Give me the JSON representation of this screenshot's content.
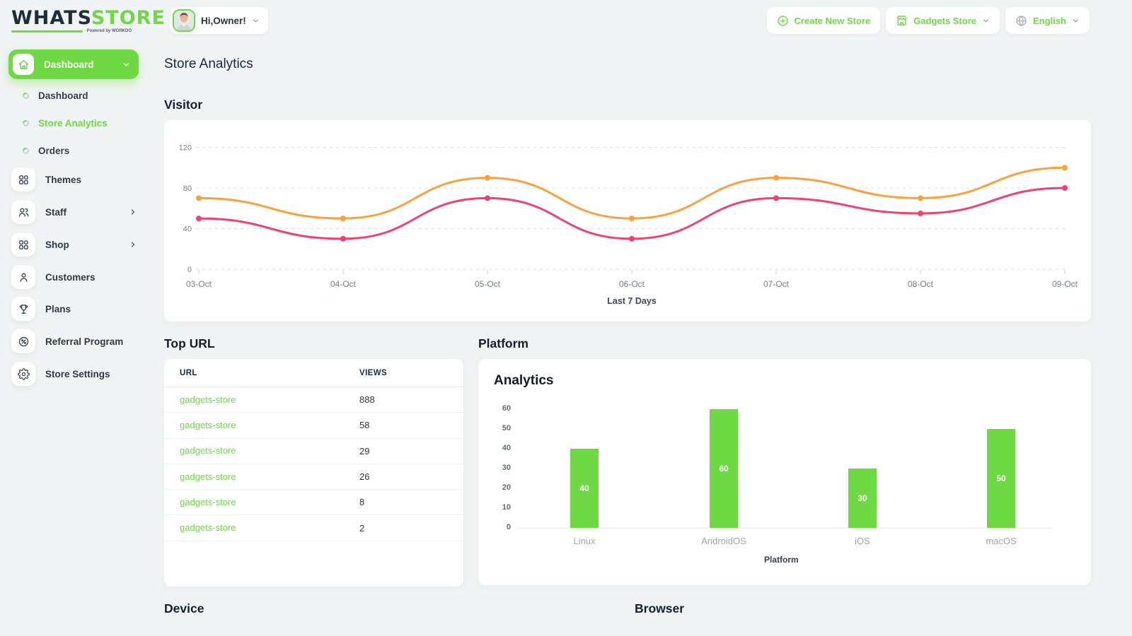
{
  "brand": {
    "name_primary": "WHATS",
    "name_secondary": "STORE",
    "tagline": "Powered by WORKDO"
  },
  "topbar": {
    "greeting": "Hi,Owner!",
    "create_store_label": "Create New Store",
    "store_name": "Gadgets Store",
    "language_label": "English"
  },
  "sidebar": {
    "dashboard_label": "Dashboard",
    "sub_items": [
      {
        "label": "Dashboard",
        "active": false
      },
      {
        "label": "Store Analytics",
        "active": true
      },
      {
        "label": "Orders",
        "active": false
      }
    ],
    "items": [
      {
        "label": "Themes",
        "icon": "grid-icon"
      },
      {
        "label": "Staff",
        "icon": "users-icon"
      },
      {
        "label": "Shop",
        "icon": "grid-icon"
      },
      {
        "label": "Customers",
        "icon": "user-icon"
      },
      {
        "label": "Plans",
        "icon": "trophy-icon"
      },
      {
        "label": "Referral Program",
        "icon": "percent-badge-icon"
      },
      {
        "label": "Store Settings",
        "icon": "gear-icon"
      }
    ]
  },
  "page": {
    "title": "Store Analytics"
  },
  "section_titles": {
    "visitor": "Visitor",
    "top_url": "Top URL",
    "platform": "Platform",
    "device": "Device",
    "browser": "Browser"
  },
  "top_url_table": {
    "headers": [
      "URL",
      "VIEWS"
    ],
    "rows": [
      {
        "url": "gadgets-store",
        "views": "888"
      },
      {
        "url": "gadgets-store",
        "views": "58"
      },
      {
        "url": "gadgets-store",
        "views": "29"
      },
      {
        "url": "gadgets-store",
        "views": "26"
      },
      {
        "url": "gadgets-store",
        "views": "8"
      },
      {
        "url": "gadgets-store",
        "views": "2"
      }
    ]
  },
  "chart_data": [
    {
      "id": "visitor_line",
      "type": "line",
      "x": [
        "03-Oct",
        "04-Oct",
        "05-Oct",
        "06-Oct",
        "07-Oct",
        "08-Oct",
        "09-Oct"
      ],
      "series": [
        {
          "name": "visitors-orange",
          "color": "#f9a13c",
          "values": [
            70,
            50,
            90,
            50,
            90,
            70,
            100
          ]
        },
        {
          "name": "visitors-pink",
          "color": "#f2416f",
          "values": [
            50,
            30,
            70,
            30,
            70,
            55,
            80
          ]
        }
      ],
      "yticks": [
        0,
        40,
        80,
        120
      ],
      "ylim": [
        0,
        128
      ],
      "xlabel": "Last 7 Days",
      "grid": "dashed-horizontal",
      "legend": "none"
    },
    {
      "id": "platform_bar",
      "type": "bar",
      "title": "Analytics",
      "categories": [
        "Linux",
        "AndroidOS",
        "iOS",
        "macOS"
      ],
      "values": [
        40,
        60,
        30,
        50
      ],
      "yticks": [
        0,
        10,
        20,
        30,
        40,
        50,
        60
      ],
      "ylim": [
        0,
        60
      ],
      "xlabel": "Platform",
      "bar_color": "#6fd943",
      "value_label_color": "#ffffff"
    }
  ],
  "colors": {
    "accent_green": "#6fd943",
    "line_orange": "#f9a13c",
    "line_pink": "#f2416f",
    "dark_text": "#1f3044",
    "muted_text": "#8a97a6",
    "background": "#f1f4f4"
  }
}
